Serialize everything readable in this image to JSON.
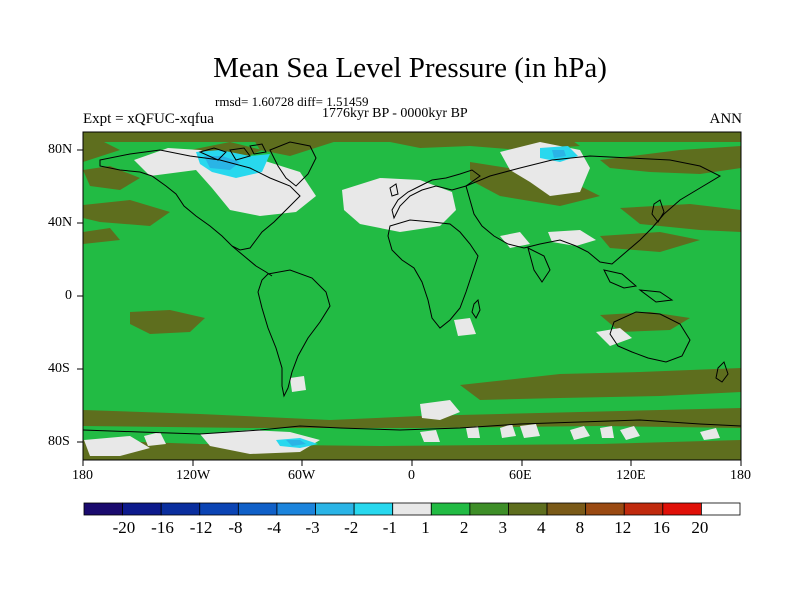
{
  "header": {
    "title": "Mean Sea Level Pressure (in hPa)",
    "stats": "rmsd= 1.60728 diff= 1.51459",
    "period": "1776kyr BP - 0000kyr BP",
    "experiment": "Expt = xQFUC-xqfua",
    "season": "ANN"
  },
  "axes": {
    "lat_ticks": [
      "80N",
      "40N",
      "0",
      "40S",
      "80S"
    ],
    "lon_ticks": [
      "180",
      "120W",
      "60W",
      "0",
      "60E",
      "120E",
      "180"
    ]
  },
  "map": {
    "projection": "cylindrical equidistant",
    "extent": {
      "lon": [
        -180,
        180
      ],
      "lat": [
        -90,
        90
      ]
    },
    "dominant_class_color": "#22bb44",
    "land_outline_color": "#000000"
  },
  "colorbar": {
    "labels": [
      "-20",
      "-16",
      "-12",
      "-8",
      "-4",
      "-3",
      "-2",
      "-1",
      "1",
      "2",
      "3",
      "4",
      "8",
      "12",
      "16",
      "20"
    ],
    "colors": [
      "#1a0a6e",
      "#0d1a8c",
      "#0a2e9e",
      "#0b44b4",
      "#1060c8",
      "#1c84dc",
      "#2ab4e6",
      "#28d8ee",
      "#e8e8e8",
      "#22bb44",
      "#3e8e28",
      "#5e6e1e",
      "#7a5a18",
      "#9a4a12",
      "#c02a0e",
      "#e01008",
      "#ffffff"
    ]
  }
}
